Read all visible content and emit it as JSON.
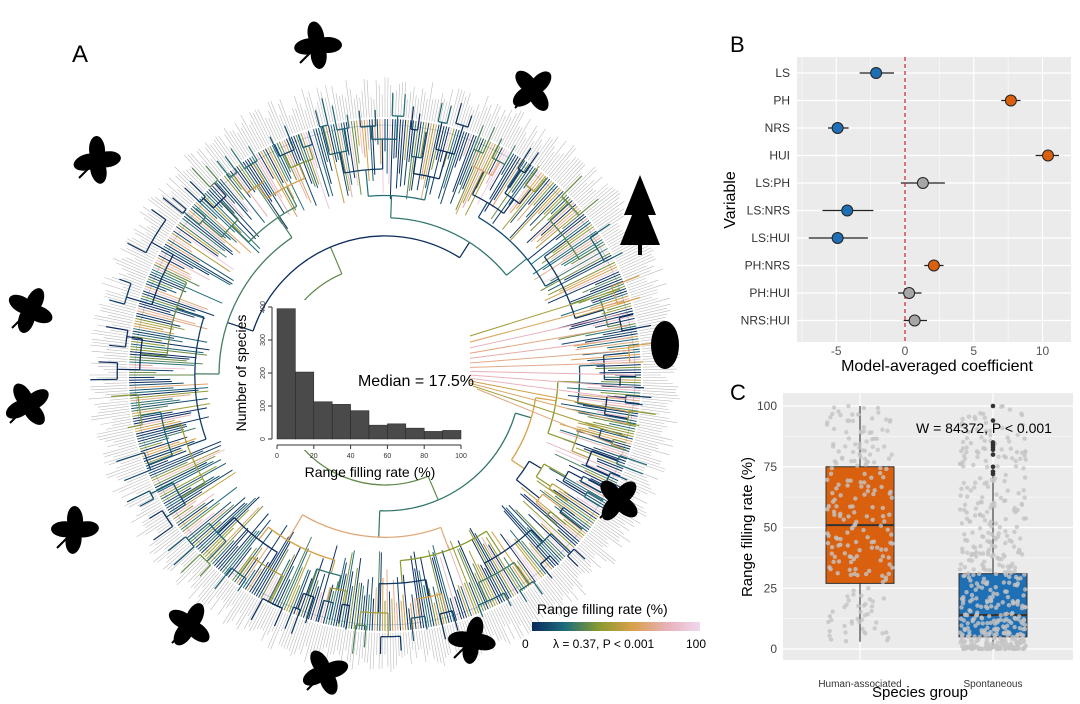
{
  "panel_labels": {
    "a": "A",
    "b": "B",
    "c": "C"
  },
  "colors": {
    "negative": "#1f6fb4",
    "positive": "#d9600e",
    "ns": "#a6a6a6",
    "panel_bg": "#ebebeb",
    "zero_line": "#cc2222",
    "hist_bar": "#4a4a4a",
    "gradient": [
      "#0a2a5e",
      "#1f6e7a",
      "#8a9a30",
      "#d9a04a",
      "#e8b0b8",
      "#f0d8ee"
    ]
  },
  "tree": {
    "legend_title": "Range filling rate (%)",
    "legend_min": "0",
    "legend_max": "100",
    "legend_stat": "λ = 0.37, P < 0.001",
    "silhouettes": [
      "herb-flowering-icon",
      "shrub-leaves-icon",
      "conifer-tree-icon",
      "cone-icon",
      "magnolia-leaves-icon",
      "flower-icon",
      "compound-leaf-icon",
      "berry-branch-icon",
      "pinnate-leaves-icon",
      "oak-leaf-icon",
      "elm-leaf-icon",
      "poplar-leaf-icon"
    ]
  },
  "chart_data": [
    {
      "type": "bar",
      "panel": "A-inset",
      "xlabel": "Range filling rate (%)",
      "ylabel": "Number of species",
      "annotation": "Median = 17.5%",
      "bin_edges": [
        0,
        10,
        20,
        30,
        40,
        50,
        60,
        70,
        80,
        90,
        100
      ],
      "values": [
        395,
        203,
        113,
        105,
        86,
        42,
        46,
        33,
        23,
        26
      ],
      "xticks": [
        "0",
        "20",
        "40",
        "60",
        "80",
        "100"
      ],
      "yticks": [
        "0",
        "100",
        "200",
        "300",
        "400"
      ],
      "xlim": [
        0,
        100
      ],
      "ylim": [
        0,
        400
      ],
      "grid": false
    },
    {
      "type": "scatter",
      "panel": "B",
      "xlabel": "Model-averaged coefficient",
      "ylabel": "Variable",
      "xlim": [
        -7.9,
        11.8
      ],
      "xticks": [
        "-5",
        "0",
        "5",
        "10"
      ],
      "reference_line": 0,
      "grid": true,
      "categories": [
        "LS",
        "PH",
        "NRS",
        "HUI",
        "LS:PH",
        "LS:NRS",
        "LS:HUI",
        "PH:NRS",
        "PH:HUI",
        "NRS:HUI"
      ],
      "estimate": [
        -2.1,
        7.7,
        -4.9,
        10.4,
        1.3,
        -4.2,
        -4.9,
        2.1,
        0.3,
        0.7
      ],
      "ci_low": [
        -3.3,
        7.0,
        -5.6,
        9.5,
        -0.3,
        -6.0,
        -7.0,
        1.4,
        -0.5,
        -0.1
      ],
      "ci_high": [
        -0.8,
        8.4,
        -4.1,
        11.2,
        2.9,
        -2.3,
        -2.7,
        2.8,
        1.2,
        1.6
      ],
      "effect": [
        "negative",
        "positive",
        "negative",
        "positive",
        "ns",
        "negative",
        "negative",
        "positive",
        "ns",
        "ns"
      ]
    },
    {
      "type": "box",
      "panel": "C",
      "xlabel": "Species group",
      "ylabel": "Range filling rate (%)",
      "annotation": "W = 84372, P < 0.001",
      "ylim": [
        -3,
        103
      ],
      "yticks": [
        "0",
        "25",
        "50",
        "75",
        "100"
      ],
      "grid": true,
      "categories": [
        "Human-associated",
        "Spontaneous"
      ],
      "box": [
        {
          "min": 3,
          "q1": 27,
          "median": 51,
          "q3": 75,
          "max": 100,
          "outliers": []
        },
        {
          "min": 0,
          "q1": 5,
          "median": 14,
          "q3": 31,
          "max": 71,
          "outliers": [
            72,
            73,
            75,
            80,
            82,
            83,
            84,
            85,
            94,
            100
          ]
        }
      ]
    }
  ]
}
